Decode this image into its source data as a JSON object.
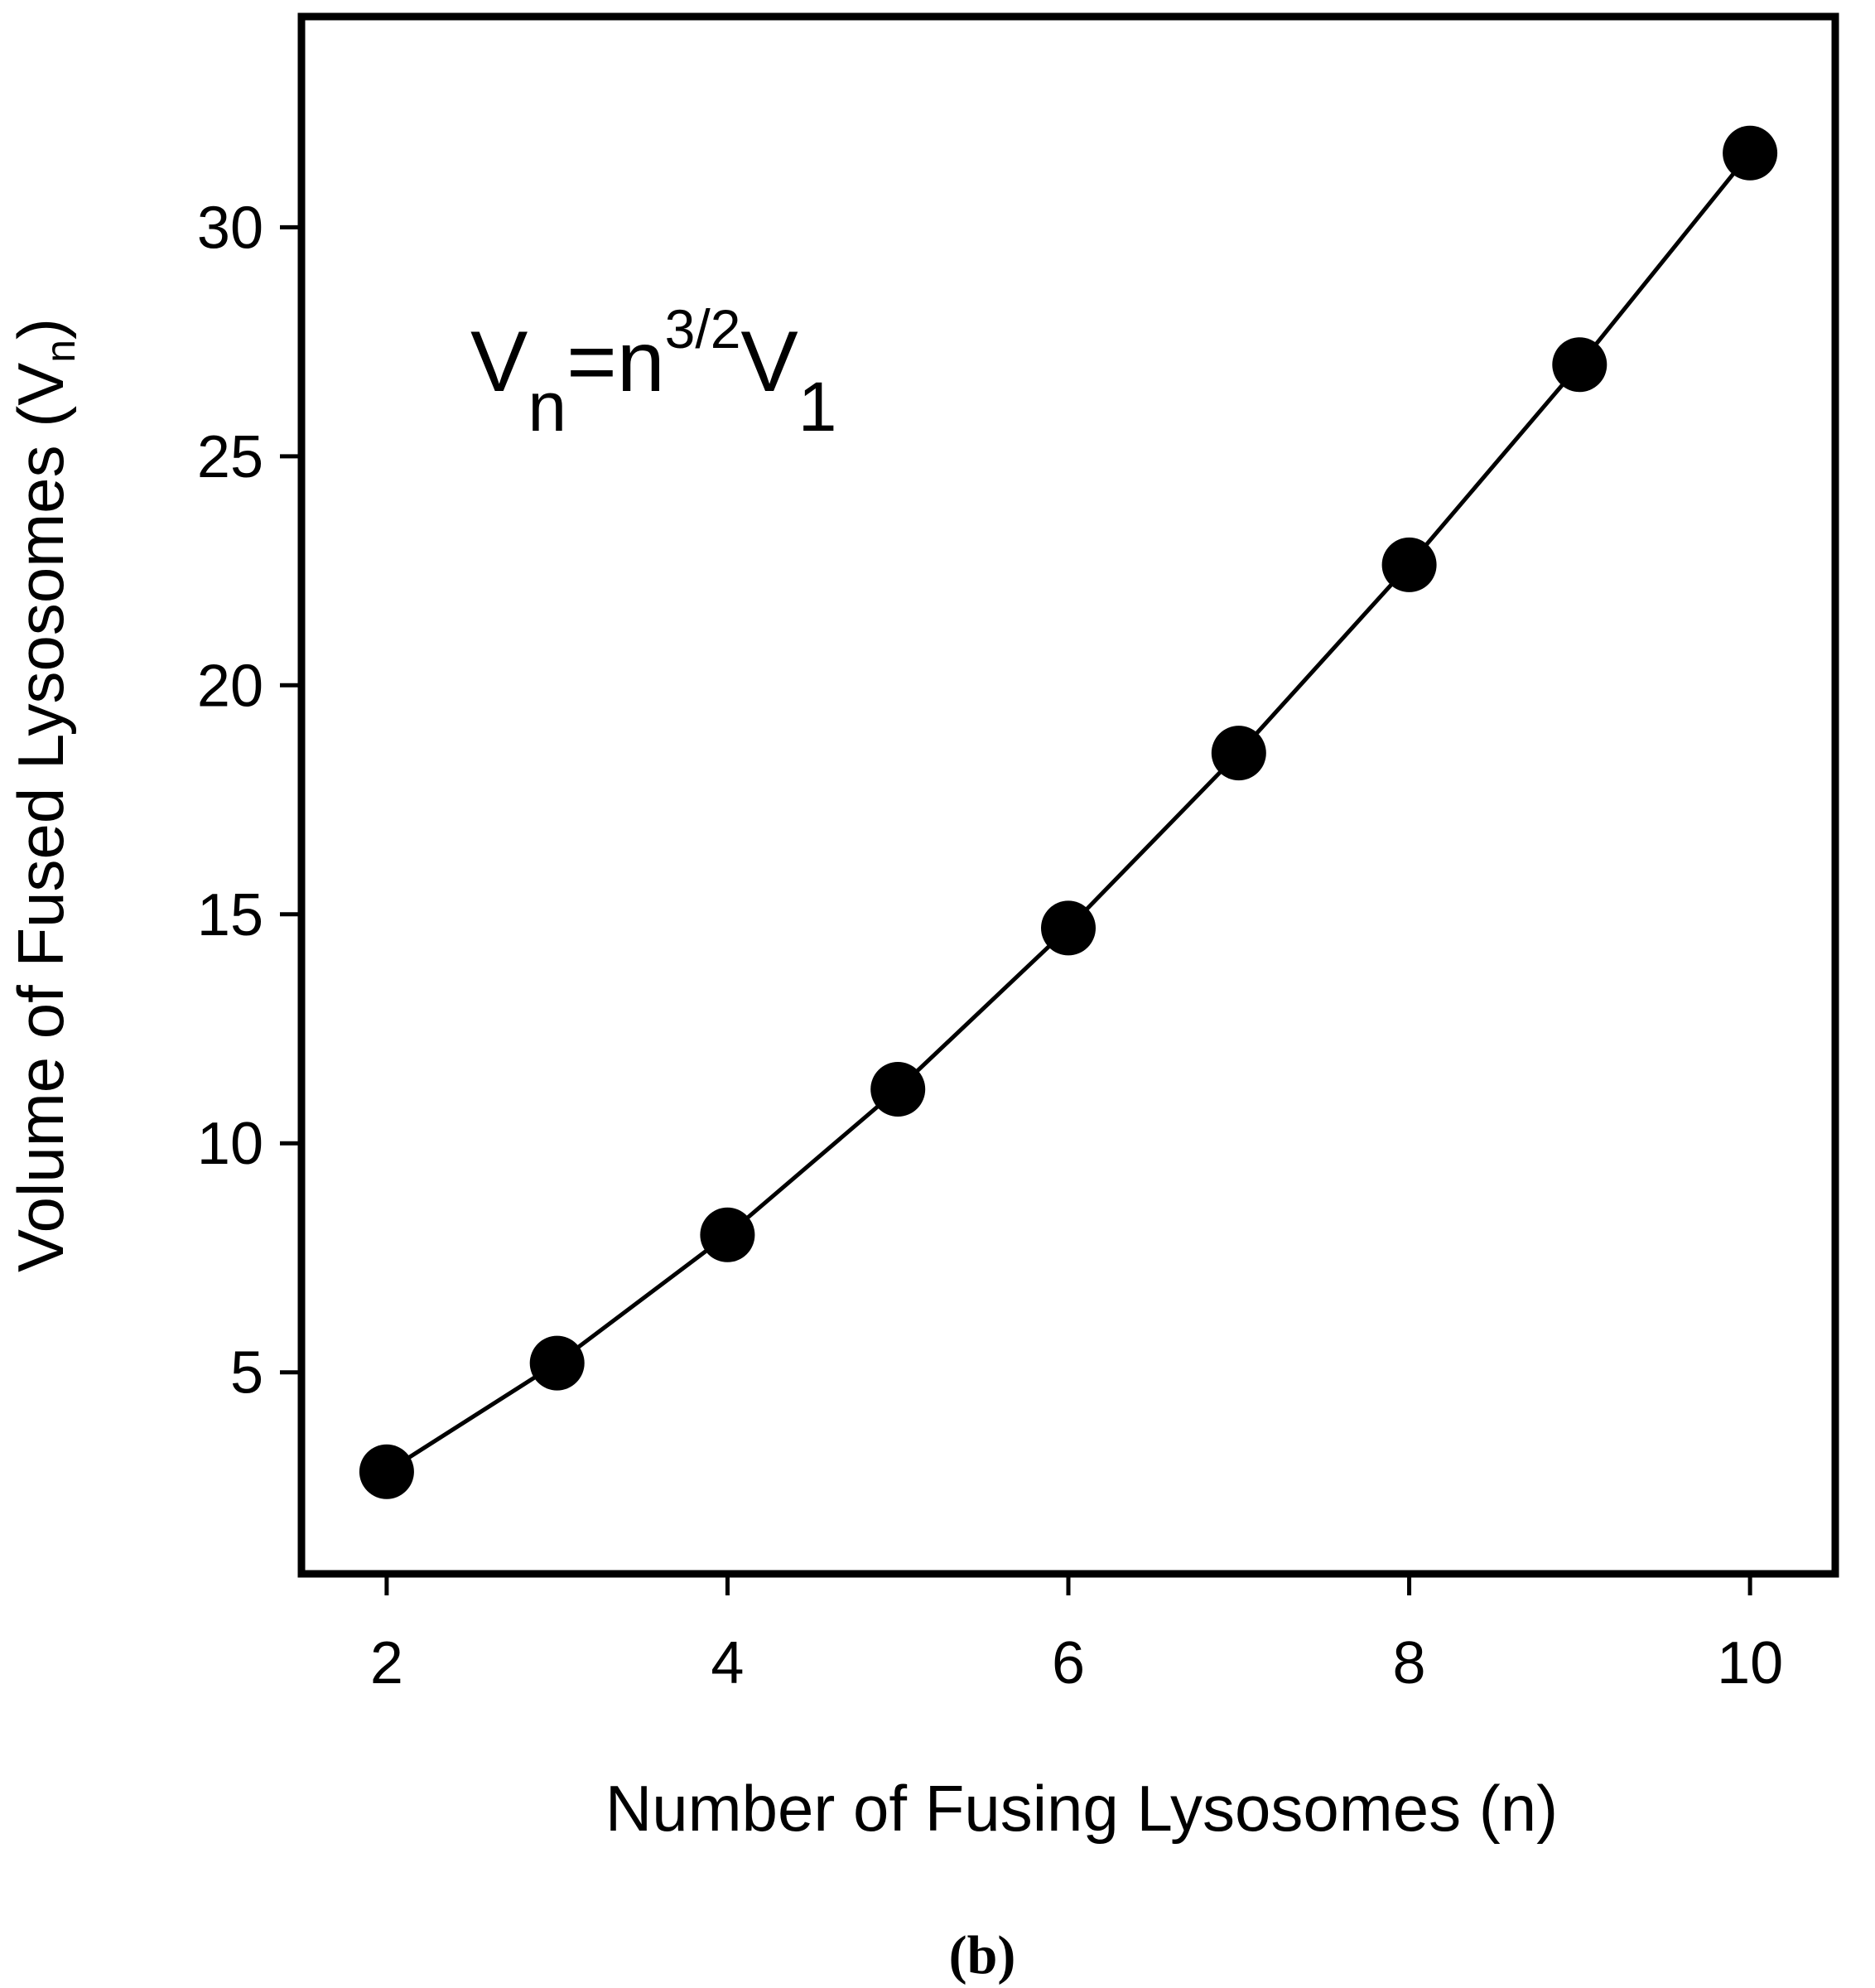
{
  "chart_data": {
    "type": "line",
    "x": [
      2,
      3,
      4,
      5,
      6,
      7,
      8,
      9,
      10
    ],
    "series": [
      {
        "values": [
          2.83,
          5.2,
          8.0,
          11.18,
          14.7,
          18.52,
          22.63,
          27.0,
          31.62
        ]
      }
    ],
    "xlabel": "Number of Fusing Lysosomes (n)",
    "ylabel": {
      "main": "Volume of Fused Lysosomes (V",
      "sub": "n",
      "close": ")"
    },
    "xlim": [
      1.5,
      10.5
    ],
    "ylim": [
      0.6,
      34.6
    ],
    "xticks": [
      "2",
      "4",
      "6",
      "8",
      "10"
    ],
    "yticks": [
      "5",
      "10",
      "15",
      "20",
      "25",
      "30"
    ],
    "grid": false,
    "annotation": {
      "v": "V",
      "sub_n": "n",
      "eq": "=n",
      "sup": "3/2",
      "v2": "V",
      "sub_1": "1"
    },
    "panel_label": "(b)"
  },
  "colors": {
    "line": "#000000",
    "marker": "#000000",
    "frame": "#000000"
  }
}
